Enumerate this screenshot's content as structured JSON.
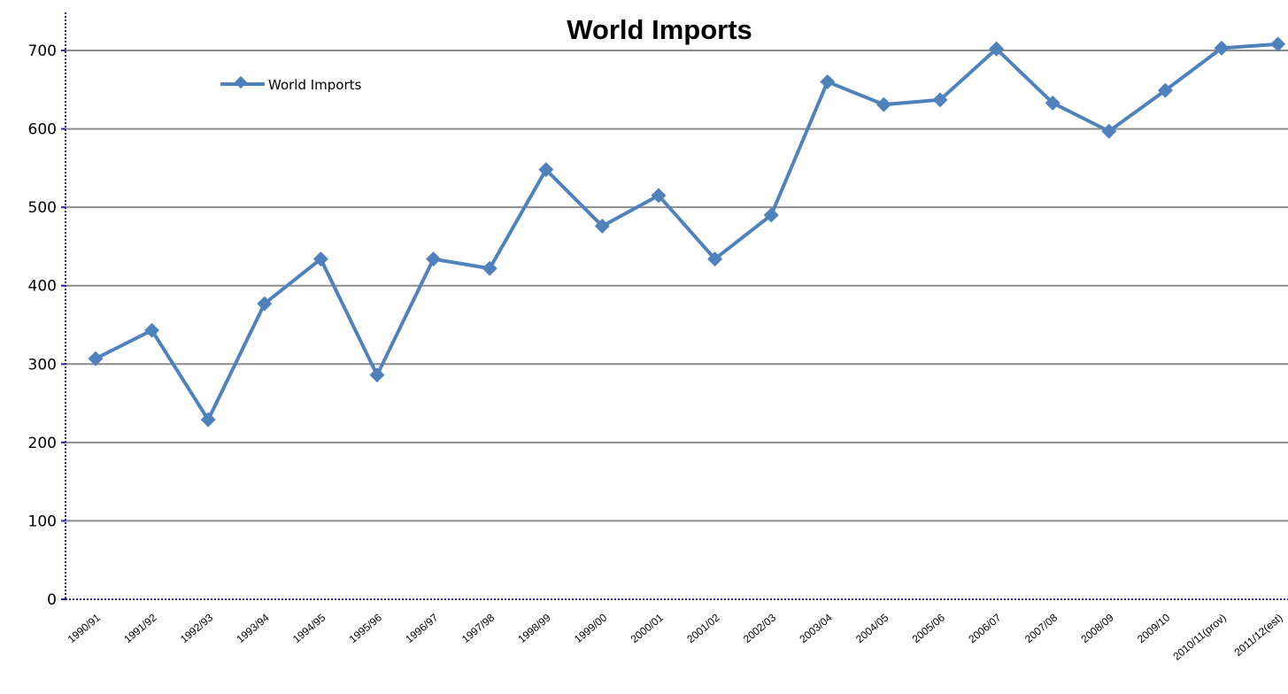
{
  "chart_data": {
    "type": "line",
    "title": "World  Imports",
    "xlabel": "",
    "ylabel": "",
    "ylim": [
      0,
      700
    ],
    "yticks": [
      0,
      100,
      200,
      300,
      400,
      500,
      600,
      700
    ],
    "grid": "horizontal",
    "legend_position": "top-left",
    "line_color": "#4f81bd",
    "categories": [
      "1990/91",
      "1991/92",
      "1992/93",
      "1993/94",
      "1994/95",
      "1995/96",
      "1996/97",
      "1997/98",
      "1998/99",
      "1999/00",
      "2000/01",
      "2001/02",
      "2002/03",
      "2003/04",
      "2004/05",
      "2005/06",
      "2006/07",
      "2007/08",
      "2008/09",
      "2009/10",
      "2010/11(prov)",
      "2011/12(est)"
    ],
    "series": [
      {
        "name": "World  Imports",
        "values": [
          307,
          343,
          229,
          377,
          434,
          286,
          434,
          422,
          548,
          476,
          515,
          434,
          490,
          660,
          631,
          637,
          702,
          633,
          597,
          649,
          703,
          708
        ]
      }
    ]
  }
}
